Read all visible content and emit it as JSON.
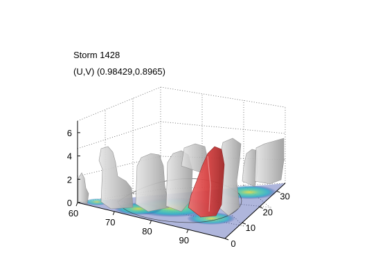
{
  "chart_data": {
    "type": "surface3d",
    "title": "Storm 1428",
    "subtitle": "(U,V) (0.98429,0.8965)",
    "xlim": [
      60,
      100
    ],
    "ylim": [
      0,
      35
    ],
    "zlim": [
      0,
      7
    ],
    "x_ticks": [
      "60",
      "70",
      "80",
      "90"
    ],
    "y_ticks": [
      "0",
      "10",
      "20",
      "30"
    ],
    "z_ticks": [
      "0",
      "2",
      "4",
      "6"
    ],
    "grid": true,
    "colors": {
      "isosurface": "#c8c8c8",
      "highlight": "#e04848",
      "floor_low": "#1a2f9a",
      "floor_mid": "#2fb0c8",
      "floor_high": "#e8e040"
    }
  }
}
